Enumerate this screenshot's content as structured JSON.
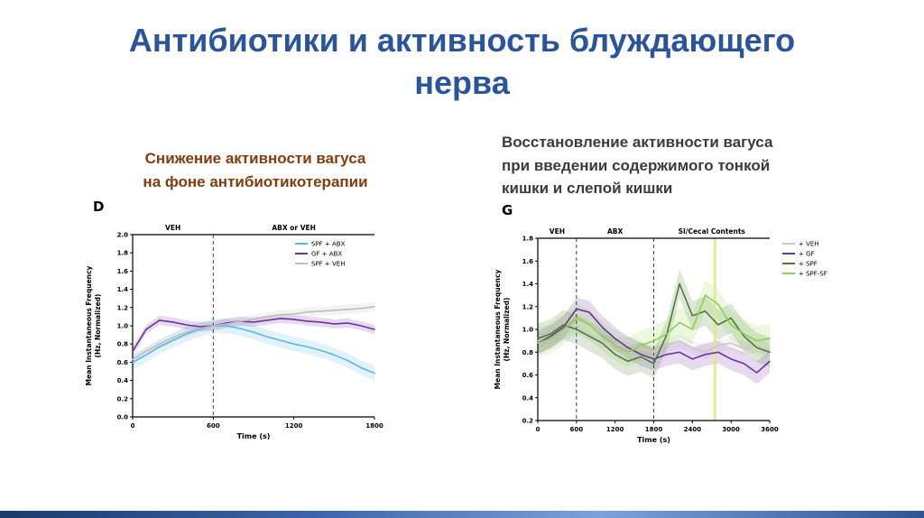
{
  "slide": {
    "title": "Антибиотики и активность блуждающего\nнерва",
    "left_heading": "Снижение активности вагуса\nна фоне антибиотикотерапии",
    "right_heading": "Восстановление активности вагуса\nпри введении содержимого тонкой\nкишки и слепой кишки",
    "colors": {
      "title": "#2A549B",
      "left_heading": "#843C0C",
      "right_heading": "#3B3B3B"
    },
    "accent_bar_colors": [
      "#1B3A6B",
      "#3B67AE",
      "#7AA3D8",
      "#2E5597"
    ]
  },
  "chart_data": [
    {
      "type": "line",
      "panel_label": "D",
      "xlabel": "Time (s)",
      "ylabel": "Mean Instantaneous Frequency\n(Hz, Normalized)",
      "xlim": [
        0,
        1800
      ],
      "ylim": [
        0.0,
        2.0
      ],
      "xticks": [
        0,
        600,
        1200,
        1800
      ],
      "yticks": [
        0.0,
        0.2,
        0.4,
        0.6,
        0.8,
        1.0,
        1.2,
        1.4,
        1.6,
        1.8,
        2.0
      ],
      "dashed_lines_x": [
        600
      ],
      "regions": [
        {
          "label": "VEH",
          "from": 0,
          "to": 600
        },
        {
          "label": "ABX or VEH",
          "from": 600,
          "to": 1800
        }
      ],
      "legend_position": "inside-top-right",
      "grid": false,
      "series": [
        {
          "name": "SPF + ABX",
          "color": "#5BB7E5",
          "band": 0.08,
          "x": [
            0,
            100,
            200,
            300,
            400,
            500,
            600,
            700,
            800,
            900,
            1000,
            1100,
            1200,
            1300,
            1400,
            1500,
            1600,
            1700,
            1800
          ],
          "y": [
            0.6,
            0.68,
            0.77,
            0.84,
            0.91,
            0.96,
            1.0,
            1.0,
            0.97,
            0.93,
            0.88,
            0.84,
            0.8,
            0.77,
            0.73,
            0.68,
            0.62,
            0.54,
            0.48
          ]
        },
        {
          "name": "GF + ABX",
          "color": "#7030A0",
          "band": 0.05,
          "x": [
            0,
            100,
            200,
            300,
            400,
            500,
            600,
            700,
            800,
            900,
            1000,
            1100,
            1200,
            1300,
            1400,
            1500,
            1600,
            1700,
            1800
          ],
          "y": [
            0.72,
            0.96,
            1.06,
            1.04,
            1.01,
            0.99,
            1.0,
            1.03,
            1.05,
            1.04,
            1.06,
            1.08,
            1.07,
            1.05,
            1.04,
            1.02,
            1.03,
            1.0,
            0.96
          ]
        },
        {
          "name": "SPF + VEH",
          "color": "#BDBDBD",
          "band": 0.05,
          "x": [
            0,
            100,
            200,
            300,
            400,
            500,
            600,
            700,
            800,
            900,
            1000,
            1100,
            1200,
            1300,
            1400,
            1500,
            1600,
            1700,
            1800
          ],
          "y": [
            0.63,
            0.72,
            0.8,
            0.87,
            0.93,
            0.97,
            1.0,
            1.02,
            1.05,
            1.07,
            1.1,
            1.12,
            1.13,
            1.15,
            1.16,
            1.17,
            1.18,
            1.19,
            1.21
          ]
        }
      ]
    },
    {
      "type": "line",
      "panel_label": "G",
      "xlabel": "Time (s)",
      "ylabel": "Mean Instantaneous Frequency\n(Hz, Normalized)",
      "xlim": [
        0,
        3600
      ],
      "ylim": [
        0.2,
        1.8
      ],
      "xticks": [
        0,
        600,
        1200,
        1800,
        2400,
        3000,
        3600
      ],
      "yticks": [
        0.2,
        0.4,
        0.6,
        0.8,
        1.0,
        1.2,
        1.4,
        1.6,
        1.8
      ],
      "dashed_lines_x": [
        600,
        1800
      ],
      "marker_lines": [
        {
          "x": 2750,
          "color": "#DCE98A"
        }
      ],
      "regions": [
        {
          "label": "VEH",
          "from": 0,
          "to": 600
        },
        {
          "label": "ABX",
          "from": 600,
          "to": 1800
        },
        {
          "label": "SI/Cecal Contents",
          "from": 1800,
          "to": 3600
        }
      ],
      "legend_position": "right",
      "grid": false,
      "series": [
        {
          "name": "+ VEH",
          "color": "#C9C9C9",
          "band": 0.06,
          "x": [
            0,
            200,
            400,
            600,
            800,
            1000,
            1200,
            1400,
            1600,
            1800,
            2000,
            2200,
            2400,
            2600,
            2800,
            3000,
            3200,
            3400,
            3600
          ],
          "y": [
            0.9,
            0.93,
            0.99,
            1.03,
            0.96,
            0.9,
            0.86,
            0.88,
            0.83,
            0.8,
            0.86,
            0.9,
            0.84,
            0.8,
            0.86,
            0.88,
            0.83,
            0.86,
            0.82
          ]
        },
        {
          "name": "+ GF",
          "color": "#7030A0",
          "band": 0.1,
          "x": [
            0,
            200,
            400,
            600,
            800,
            1000,
            1200,
            1400,
            1600,
            1800,
            2000,
            2200,
            2400,
            2600,
            2800,
            3000,
            3200,
            3400,
            3600
          ],
          "y": [
            0.88,
            0.94,
            1.02,
            1.18,
            1.15,
            1.02,
            0.92,
            0.84,
            0.78,
            0.74,
            0.78,
            0.8,
            0.74,
            0.78,
            0.8,
            0.74,
            0.7,
            0.62,
            0.72
          ]
        },
        {
          "name": "+ SPF",
          "color": "#4E7B35",
          "band": 0.13,
          "x": [
            0,
            200,
            400,
            600,
            800,
            1000,
            1200,
            1400,
            1600,
            1800,
            2000,
            2200,
            2400,
            2600,
            2800,
            3000,
            3200,
            3400,
            3600
          ],
          "y": [
            0.92,
            0.96,
            1.04,
            1.0,
            0.94,
            0.88,
            0.78,
            0.72,
            0.76,
            0.7,
            0.95,
            1.4,
            1.12,
            1.16,
            1.04,
            1.1,
            0.94,
            0.84,
            0.8
          ]
        },
        {
          "name": "+ SPF-SF",
          "color": "#8ED04E",
          "band": 0.13,
          "x": [
            0,
            200,
            400,
            600,
            800,
            1000,
            1200,
            1400,
            1600,
            1800,
            2000,
            2200,
            2400,
            2600,
            2800,
            3000,
            3200,
            3400,
            3600
          ],
          "y": [
            0.88,
            0.92,
            1.0,
            1.1,
            1.04,
            0.94,
            0.86,
            0.8,
            0.86,
            0.9,
            0.96,
            1.06,
            1.0,
            1.3,
            1.22,
            1.04,
            0.96,
            0.9,
            0.92
          ]
        }
      ]
    }
  ]
}
